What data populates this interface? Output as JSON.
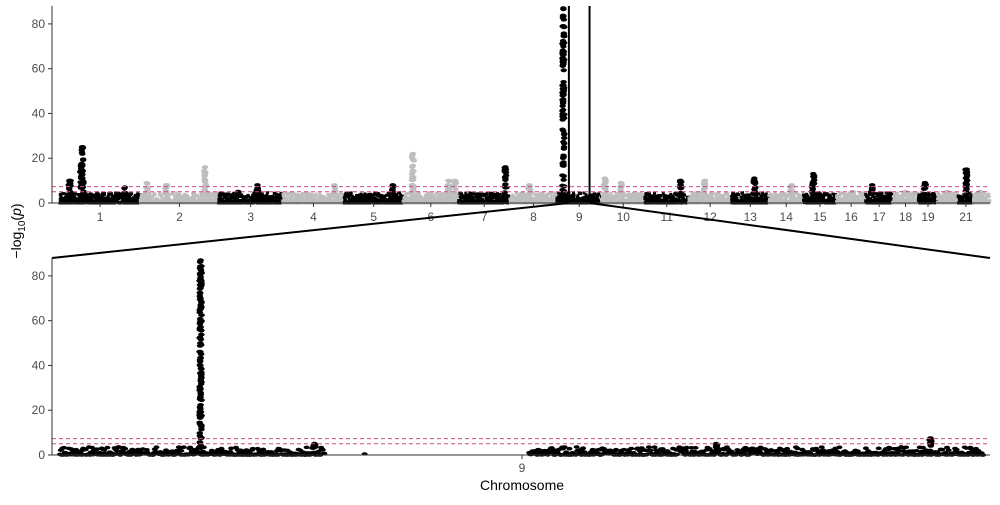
{
  "chart_data": [
    {
      "type": "scatter",
      "subtype": "manhattan",
      "panel": "genome-wide",
      "ylabel": "−log10(p)",
      "ylim": [
        0,
        88
      ],
      "yticks": [
        0,
        20,
        40,
        60,
        80
      ],
      "threshold_lines": [
        5,
        7.3
      ],
      "highlighted_chromosome": "9",
      "chromosome_labels": [
        "1",
        "2",
        "3",
        "4",
        "5",
        "6",
        "7",
        "8",
        "9",
        "10",
        "11",
        "12",
        "13",
        "14",
        "15",
        "16",
        "17",
        "18",
        "19",
        "21"
      ],
      "chromosomes": [
        {
          "chr": "1",
          "start": 0,
          "end": 248,
          "color": "black",
          "peaks": [
            [
              70,
              25
            ],
            [
              65,
              17
            ],
            [
              30,
              10
            ],
            [
              200,
              7
            ]
          ]
        },
        {
          "chr": "2",
          "start": 248,
          "end": 490,
          "color": "gray",
          "peaks": [
            [
              20,
              9
            ],
            [
              80,
              8
            ],
            [
              200,
              16
            ]
          ]
        },
        {
          "chr": "3",
          "start": 490,
          "end": 688,
          "color": "black",
          "peaks": [
            [
              120,
              8
            ],
            [
              60,
              5
            ]
          ]
        },
        {
          "chr": "4",
          "start": 688,
          "end": 878,
          "color": "gray",
          "peaks": [
            [
              160,
              8
            ]
          ]
        },
        {
          "chr": "5",
          "start": 878,
          "end": 1060,
          "color": "black",
          "peaks": [
            [
              150,
              8
            ]
          ]
        },
        {
          "chr": "6",
          "start": 1060,
          "end": 1231,
          "color": "gray",
          "peaks": [
            [
              30,
              22
            ],
            [
              140,
              10
            ],
            [
              160,
              10
            ]
          ]
        },
        {
          "chr": "7",
          "start": 1231,
          "end": 1390,
          "color": "black",
          "peaks": [
            [
              145,
              16
            ]
          ]
        },
        {
          "chr": "8",
          "start": 1390,
          "end": 1535,
          "color": "gray",
          "peaks": [
            [
              60,
              8
            ]
          ]
        },
        {
          "chr": "9",
          "start": 1535,
          "end": 1673,
          "color": "black",
          "peaks": [
            [
              20,
              87
            ]
          ]
        },
        {
          "chr": "10",
          "start": 1673,
          "end": 1807,
          "color": "gray",
          "peaks": [
            [
              10,
              11
            ],
            [
              60,
              9
            ]
          ]
        },
        {
          "chr": "11",
          "start": 1807,
          "end": 1942,
          "color": "black",
          "peaks": [
            [
              110,
              10
            ]
          ]
        },
        {
          "chr": "12",
          "start": 1942,
          "end": 2075,
          "color": "gray",
          "peaks": [
            [
              50,
              10
            ]
          ]
        },
        {
          "chr": "13",
          "start": 2075,
          "end": 2190,
          "color": "black",
          "peaks": [
            [
              70,
              11
            ]
          ]
        },
        {
          "chr": "14",
          "start": 2190,
          "end": 2297,
          "color": "gray",
          "peaks": [
            [
              70,
              8
            ]
          ]
        },
        {
          "chr": "15",
          "start": 2297,
          "end": 2399,
          "color": "black",
          "peaks": [
            [
              30,
              13
            ]
          ]
        },
        {
          "chr": "16",
          "start": 2399,
          "end": 2489,
          "color": "gray",
          "peaks": [
            [
              50,
              5
            ]
          ]
        },
        {
          "chr": "17",
          "start": 2489,
          "end": 2572,
          "color": "black",
          "peaks": [
            [
              20,
              8
            ]
          ]
        },
        {
          "chr": "18",
          "start": 2572,
          "end": 2652,
          "color": "gray",
          "peaks": [
            [
              40,
              5
            ]
          ]
        },
        {
          "chr": "19",
          "start": 2652,
          "end": 2711,
          "color": "black",
          "peaks": [
            [
              20,
              9
            ]
          ]
        },
        {
          "chr": "20",
          "start": 2711,
          "end": 2775,
          "color": "gray",
          "peaks": [
            [
              30,
              5
            ]
          ]
        },
        {
          "chr": "21",
          "start": 2775,
          "end": 2822,
          "color": "black",
          "peaks": [
            [
              25,
              15
            ]
          ]
        },
        {
          "chr": "22",
          "start": 2822,
          "end": 2873,
          "color": "gray",
          "peaks": [
            [
              20,
              5
            ]
          ]
        }
      ]
    },
    {
      "type": "scatter",
      "subtype": "manhattan",
      "panel": "chromosome-9-zoom",
      "xlabel": "Chromosome",
      "ylabel": "−log10(p)",
      "x_tick_label": "9",
      "xlim": [
        0,
        138
      ],
      "ylim": [
        0,
        88
      ],
      "yticks": [
        0,
        20,
        40,
        60,
        80
      ],
      "threshold_lines": [
        5,
        7.3
      ],
      "gap": [
        39.5,
        70
      ],
      "peaks": [
        [
          21,
          87
        ],
        [
          130,
          7.5
        ],
        [
          38,
          5
        ],
        [
          98,
          5
        ]
      ]
    }
  ],
  "colors": {
    "points_dark": "#000000",
    "points_light": "#bebebe",
    "threshold_line": "#cc4c8a",
    "axis": "#333333",
    "tick_label": "#4d4d4d"
  }
}
